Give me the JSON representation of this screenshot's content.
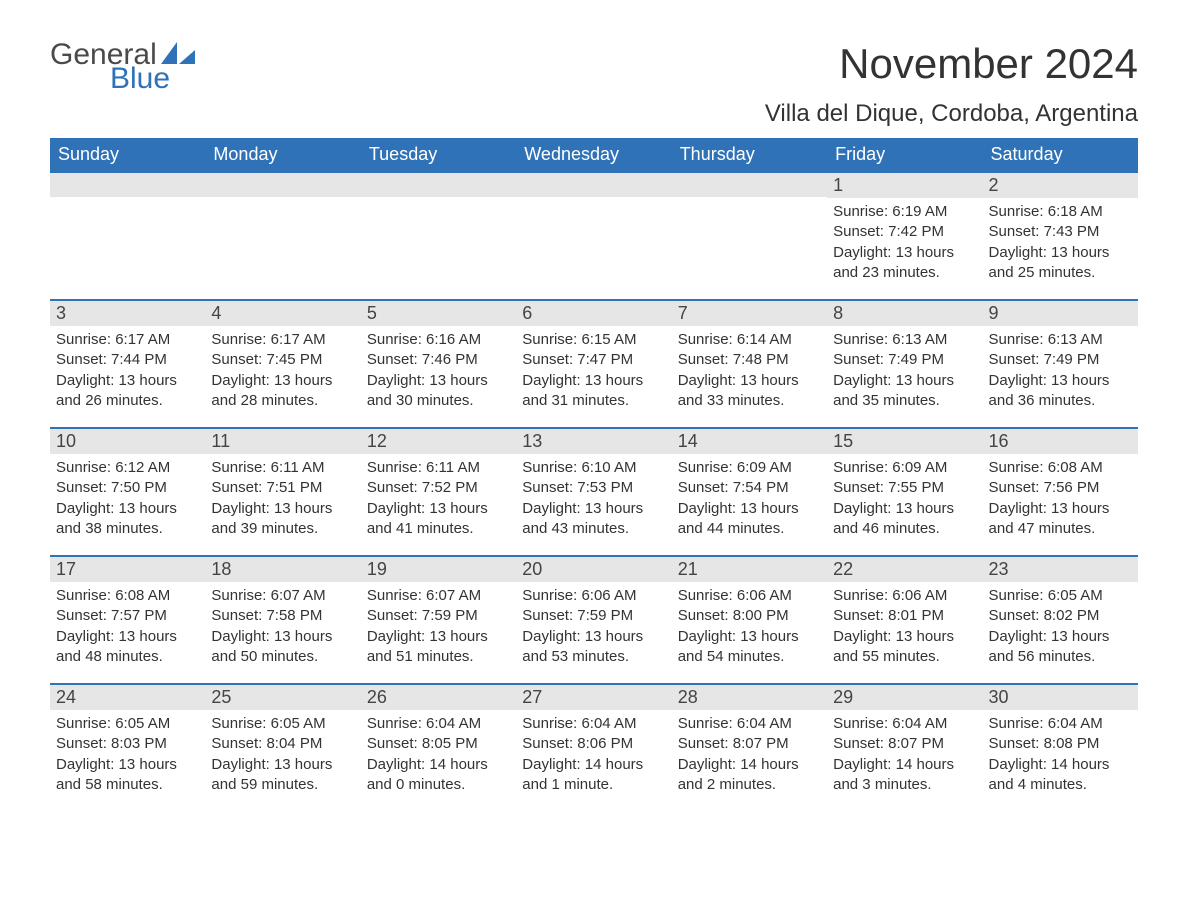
{
  "logo": {
    "word1": "General",
    "word2": "Blue",
    "word1_color": "#4a4a4a",
    "word2_color": "#2f72b8",
    "sail_color": "#2f72b8"
  },
  "title": "November 2024",
  "location": "Villa del Dique, Cordoba, Argentina",
  "colors": {
    "header_bg": "#2f72b8",
    "header_fg": "#ffffff",
    "daynum_bg": "#e6e6e6",
    "text": "#333333",
    "row_divider": "#2f72b8",
    "page_bg": "#ffffff"
  },
  "fonts": {
    "title_size_pt": 32,
    "location_size_pt": 18,
    "dayheader_size_pt": 14,
    "daynum_size_pt": 14,
    "body_size_pt": 11
  },
  "day_headers": [
    "Sunday",
    "Monday",
    "Tuesday",
    "Wednesday",
    "Thursday",
    "Friday",
    "Saturday"
  ],
  "weeks": [
    [
      null,
      null,
      null,
      null,
      null,
      {
        "n": "1",
        "sunrise": "Sunrise: 6:19 AM",
        "sunset": "Sunset: 7:42 PM",
        "daylight": "Daylight: 13 hours and 23 minutes."
      },
      {
        "n": "2",
        "sunrise": "Sunrise: 6:18 AM",
        "sunset": "Sunset: 7:43 PM",
        "daylight": "Daylight: 13 hours and 25 minutes."
      }
    ],
    [
      {
        "n": "3",
        "sunrise": "Sunrise: 6:17 AM",
        "sunset": "Sunset: 7:44 PM",
        "daylight": "Daylight: 13 hours and 26 minutes."
      },
      {
        "n": "4",
        "sunrise": "Sunrise: 6:17 AM",
        "sunset": "Sunset: 7:45 PM",
        "daylight": "Daylight: 13 hours and 28 minutes."
      },
      {
        "n": "5",
        "sunrise": "Sunrise: 6:16 AM",
        "sunset": "Sunset: 7:46 PM",
        "daylight": "Daylight: 13 hours and 30 minutes."
      },
      {
        "n": "6",
        "sunrise": "Sunrise: 6:15 AM",
        "sunset": "Sunset: 7:47 PM",
        "daylight": "Daylight: 13 hours and 31 minutes."
      },
      {
        "n": "7",
        "sunrise": "Sunrise: 6:14 AM",
        "sunset": "Sunset: 7:48 PM",
        "daylight": "Daylight: 13 hours and 33 minutes."
      },
      {
        "n": "8",
        "sunrise": "Sunrise: 6:13 AM",
        "sunset": "Sunset: 7:49 PM",
        "daylight": "Daylight: 13 hours and 35 minutes."
      },
      {
        "n": "9",
        "sunrise": "Sunrise: 6:13 AM",
        "sunset": "Sunset: 7:49 PM",
        "daylight": "Daylight: 13 hours and 36 minutes."
      }
    ],
    [
      {
        "n": "10",
        "sunrise": "Sunrise: 6:12 AM",
        "sunset": "Sunset: 7:50 PM",
        "daylight": "Daylight: 13 hours and 38 minutes."
      },
      {
        "n": "11",
        "sunrise": "Sunrise: 6:11 AM",
        "sunset": "Sunset: 7:51 PM",
        "daylight": "Daylight: 13 hours and 39 minutes."
      },
      {
        "n": "12",
        "sunrise": "Sunrise: 6:11 AM",
        "sunset": "Sunset: 7:52 PM",
        "daylight": "Daylight: 13 hours and 41 minutes."
      },
      {
        "n": "13",
        "sunrise": "Sunrise: 6:10 AM",
        "sunset": "Sunset: 7:53 PM",
        "daylight": "Daylight: 13 hours and 43 minutes."
      },
      {
        "n": "14",
        "sunrise": "Sunrise: 6:09 AM",
        "sunset": "Sunset: 7:54 PM",
        "daylight": "Daylight: 13 hours and 44 minutes."
      },
      {
        "n": "15",
        "sunrise": "Sunrise: 6:09 AM",
        "sunset": "Sunset: 7:55 PM",
        "daylight": "Daylight: 13 hours and 46 minutes."
      },
      {
        "n": "16",
        "sunrise": "Sunrise: 6:08 AM",
        "sunset": "Sunset: 7:56 PM",
        "daylight": "Daylight: 13 hours and 47 minutes."
      }
    ],
    [
      {
        "n": "17",
        "sunrise": "Sunrise: 6:08 AM",
        "sunset": "Sunset: 7:57 PM",
        "daylight": "Daylight: 13 hours and 48 minutes."
      },
      {
        "n": "18",
        "sunrise": "Sunrise: 6:07 AM",
        "sunset": "Sunset: 7:58 PM",
        "daylight": "Daylight: 13 hours and 50 minutes."
      },
      {
        "n": "19",
        "sunrise": "Sunrise: 6:07 AM",
        "sunset": "Sunset: 7:59 PM",
        "daylight": "Daylight: 13 hours and 51 minutes."
      },
      {
        "n": "20",
        "sunrise": "Sunrise: 6:06 AM",
        "sunset": "Sunset: 7:59 PM",
        "daylight": "Daylight: 13 hours and 53 minutes."
      },
      {
        "n": "21",
        "sunrise": "Sunrise: 6:06 AM",
        "sunset": "Sunset: 8:00 PM",
        "daylight": "Daylight: 13 hours and 54 minutes."
      },
      {
        "n": "22",
        "sunrise": "Sunrise: 6:06 AM",
        "sunset": "Sunset: 8:01 PM",
        "daylight": "Daylight: 13 hours and 55 minutes."
      },
      {
        "n": "23",
        "sunrise": "Sunrise: 6:05 AM",
        "sunset": "Sunset: 8:02 PM",
        "daylight": "Daylight: 13 hours and 56 minutes."
      }
    ],
    [
      {
        "n": "24",
        "sunrise": "Sunrise: 6:05 AM",
        "sunset": "Sunset: 8:03 PM",
        "daylight": "Daylight: 13 hours and 58 minutes."
      },
      {
        "n": "25",
        "sunrise": "Sunrise: 6:05 AM",
        "sunset": "Sunset: 8:04 PM",
        "daylight": "Daylight: 13 hours and 59 minutes."
      },
      {
        "n": "26",
        "sunrise": "Sunrise: 6:04 AM",
        "sunset": "Sunset: 8:05 PM",
        "daylight": "Daylight: 14 hours and 0 minutes."
      },
      {
        "n": "27",
        "sunrise": "Sunrise: 6:04 AM",
        "sunset": "Sunset: 8:06 PM",
        "daylight": "Daylight: 14 hours and 1 minute."
      },
      {
        "n": "28",
        "sunrise": "Sunrise: 6:04 AM",
        "sunset": "Sunset: 8:07 PM",
        "daylight": "Daylight: 14 hours and 2 minutes."
      },
      {
        "n": "29",
        "sunrise": "Sunrise: 6:04 AM",
        "sunset": "Sunset: 8:07 PM",
        "daylight": "Daylight: 14 hours and 3 minutes."
      },
      {
        "n": "30",
        "sunrise": "Sunrise: 6:04 AM",
        "sunset": "Sunset: 8:08 PM",
        "daylight": "Daylight: 14 hours and 4 minutes."
      }
    ]
  ]
}
